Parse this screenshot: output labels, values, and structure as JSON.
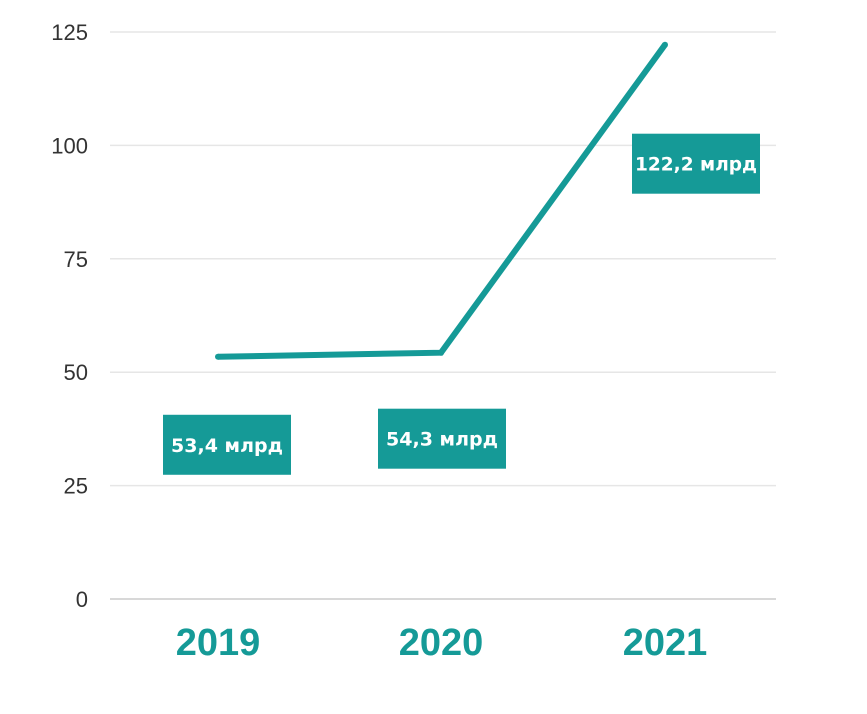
{
  "chart_data": {
    "type": "line",
    "categories": [
      "2019",
      "2020",
      "2021"
    ],
    "series": [
      {
        "values": [
          53.4,
          54.3,
          122.2
        ],
        "labels": [
          "53,4 млрд",
          "54,3 млрд",
          "122,2 млрд"
        ]
      }
    ],
    "yticks": [
      "0",
      "25",
      "50",
      "75",
      "100",
      "125"
    ],
    "ylim": [
      0,
      125
    ],
    "grid": true,
    "legend": "none",
    "title": "",
    "xlabel": "",
    "ylabel": "",
    "colors": {
      "line": "#159a97",
      "label_bg": "#159a97",
      "label_text": "#ffffff",
      "x_tick": "#159a97",
      "y_tick": "#333333",
      "grid": "#e6e6e6"
    }
  }
}
